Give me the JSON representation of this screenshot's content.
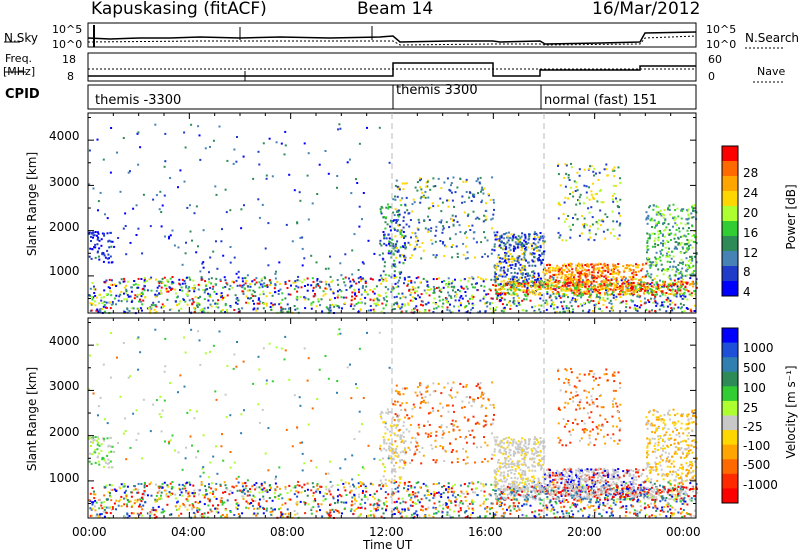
{
  "header": {
    "station": "Kapuskasing (fitACF)",
    "beam": "Beam 14",
    "date": "16/Mar/2012"
  },
  "top_panels": {
    "nsky_label": "N.Sky",
    "nsky_ticks": [
      "10^5",
      "10^0"
    ],
    "nsearch_label": "N.Search",
    "freq_label": "Freq.",
    "freq_unit": "[MHz]",
    "freq_ticks": [
      "18",
      "8"
    ],
    "nave_label": "Nave",
    "nave_ticks": [
      "60",
      "0"
    ],
    "cpid_label": "CPID",
    "cpid_segments": [
      {
        "label": "themis -3300",
        "start_hour": 0,
        "end_hour": 12
      },
      {
        "label": "themis 3300",
        "start_hour": 12,
        "end_hour": 18
      },
      {
        "label": "normal (fast) 151",
        "start_hour": 18,
        "end_hour": 24
      }
    ]
  },
  "chart_data": [
    {
      "type": "heatmap",
      "quantity": "Power",
      "ylabel": "Slant Range [km]",
      "ylim": [
        180,
        4600
      ],
      "yticks": [
        "1000",
        "2000",
        "3000",
        "4000"
      ],
      "xlim": [
        0,
        24
      ],
      "xlabel": "Time UT",
      "xticks": [
        "00:00",
        "04:00",
        "08:00",
        "12:00",
        "16:00",
        "20:00",
        "00:00"
      ],
      "colorbar": {
        "label": "Power [dB]",
        "ticks": [
          "28",
          "24",
          "20",
          "16",
          "12",
          "8",
          "4"
        ],
        "colors": [
          "#ff0000",
          "#ff6a00",
          "#ffa500",
          "#ffd700",
          "#adff2f",
          "#32cd32",
          "#2e8b57",
          "#4682b4",
          "#1e3cc8",
          "#0000ff"
        ]
      }
    },
    {
      "type": "heatmap",
      "quantity": "Velocity",
      "ylabel": "Slant Range [km]",
      "ylim": [
        180,
        4600
      ],
      "yticks": [
        "1000",
        "2000",
        "3000",
        "4000"
      ],
      "xlim": [
        0,
        24
      ],
      "xlabel": "Time UT",
      "xticks": [
        "00:00",
        "04:00",
        "08:00",
        "12:00",
        "16:00",
        "20:00",
        "00:00"
      ],
      "colorbar": {
        "label": "Velocity [m s⁻¹]",
        "ticks": [
          "1000",
          "500",
          "100",
          "25",
          "-25",
          "-100",
          "-500",
          "-1000"
        ],
        "colors": [
          "#0000ff",
          "#1e4fd8",
          "#2f7fb0",
          "#2e8b57",
          "#32cd32",
          "#adff2f",
          "#c8c8c8",
          "#ffd700",
          "#ffa500",
          "#ff6a00",
          "#ff2a00",
          "#ff0000"
        ]
      }
    }
  ]
}
